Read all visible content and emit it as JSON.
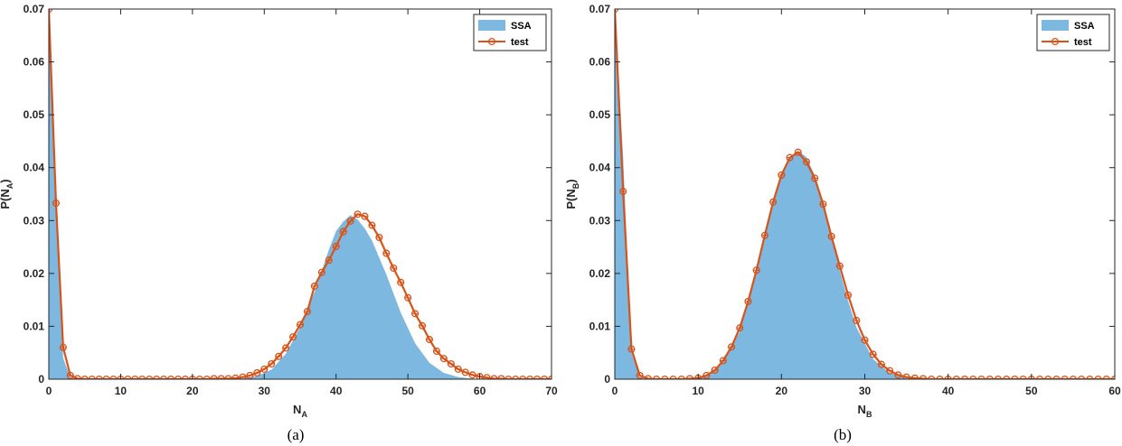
{
  "colors": {
    "hist_fill": "#7DB8E0",
    "line": "#D95319",
    "axis": "#262626"
  },
  "chart_data": [
    {
      "type": "area",
      "panel_label": "(a)",
      "xlabel_main": "N",
      "xlabel_sub": "A",
      "ylabel_main": "P(N",
      "ylabel_sub": "A",
      "ylabel_close": ")",
      "xlim": [
        0,
        70
      ],
      "ylim": [
        0,
        0.07
      ],
      "xticks": [
        "0",
        "10",
        "20",
        "30",
        "40",
        "50",
        "60",
        "70"
      ],
      "yticks": [
        "0",
        "0.01",
        "0.02",
        "0.03",
        "0.04",
        "0.05",
        "0.06",
        "0.07"
      ],
      "legend_position": "top-right",
      "series": [
        {
          "name": "SSA",
          "style": "filled",
          "x": [
            0,
            1,
            2,
            3,
            4,
            5,
            25,
            27,
            29,
            31,
            33,
            35,
            37,
            39,
            40,
            41,
            42,
            43,
            44,
            45,
            47,
            49,
            51,
            53,
            55,
            57,
            59,
            61,
            70
          ],
          "y": [
            0.07,
            0.031,
            0.004,
            0.0003,
            0.0,
            0.0,
            0.0,
            0.0002,
            0.0006,
            0.0018,
            0.0048,
            0.0098,
            0.0165,
            0.0245,
            0.028,
            0.0298,
            0.031,
            0.0302,
            0.0285,
            0.0262,
            0.0198,
            0.0126,
            0.0068,
            0.0031,
            0.0012,
            0.0004,
            0.0001,
            0.0,
            0.0
          ]
        },
        {
          "name": "test",
          "style": "line-markers",
          "x": [
            0,
            1,
            2,
            3,
            4,
            5,
            6,
            7,
            8,
            9,
            10,
            11,
            12,
            13,
            14,
            15,
            16,
            17,
            18,
            19,
            20,
            21,
            22,
            23,
            24,
            25,
            26,
            27,
            28,
            29,
            30,
            31,
            32,
            33,
            34,
            35,
            36,
            37,
            38,
            39,
            40,
            41,
            42,
            43,
            44,
            45,
            46,
            47,
            48,
            49,
            50,
            51,
            52,
            53,
            54,
            55,
            56,
            57,
            58,
            59,
            60,
            61,
            62,
            63,
            64,
            65,
            66,
            67,
            68,
            69,
            70
          ],
          "y": [
            0.07,
            0.0333,
            0.006,
            0.0007,
            0.0001,
            0,
            0,
            0,
            0,
            0,
            0,
            0,
            0,
            0,
            0,
            0,
            0,
            0,
            0,
            0,
            0,
            0,
            0,
            0.0001,
            0.0001,
            0.0001,
            0.0002,
            0.0004,
            0.0007,
            0.0012,
            0.0019,
            0.0029,
            0.0043,
            0.0059,
            0.008,
            0.0103,
            0.0128,
            0.0176,
            0.0202,
            0.0225,
            0.0251,
            0.0279,
            0.0299,
            0.0312,
            0.0308,
            0.0291,
            0.0268,
            0.0238,
            0.021,
            0.0183,
            0.0154,
            0.0124,
            0.0101,
            0.0075,
            0.0053,
            0.0039,
            0.0029,
            0.0019,
            0.0013,
            0.0008,
            0.0005,
            0.0003,
            0.0001,
            0.0001,
            0,
            0,
            0,
            0,
            0,
            0,
            0
          ]
        }
      ]
    },
    {
      "type": "area",
      "panel_label": "(b)",
      "xlabel_main": "N",
      "xlabel_sub": "B",
      "ylabel_main": "P(N",
      "ylabel_sub": "B",
      "ylabel_close": ")",
      "xlim": [
        0,
        60
      ],
      "ylim": [
        0,
        0.07
      ],
      "xticks": [
        "0",
        "10",
        "20",
        "30",
        "40",
        "50",
        "60"
      ],
      "yticks": [
        "0",
        "0.01",
        "0.02",
        "0.03",
        "0.04",
        "0.05",
        "0.06",
        "0.07"
      ],
      "legend_position": "top-right",
      "series": [
        {
          "name": "SSA",
          "style": "filled",
          "x": [
            0,
            1,
            2,
            3,
            4,
            9,
            11,
            13,
            15,
            16,
            17,
            18,
            19,
            20,
            21,
            22,
            23,
            24,
            25,
            26,
            27,
            28,
            29,
            31,
            33,
            35,
            37,
            40,
            60
          ],
          "y": [
            0.07,
            0.042,
            0.005,
            0.0004,
            0.0,
            0.0,
            0.0006,
            0.0033,
            0.009,
            0.015,
            0.0205,
            0.0273,
            0.0335,
            0.0385,
            0.042,
            0.0432,
            0.042,
            0.0385,
            0.0335,
            0.0272,
            0.0205,
            0.0148,
            0.0098,
            0.0038,
            0.0012,
            0.0003,
            0.0001,
            0.0,
            0.0
          ]
        },
        {
          "name": "test",
          "style": "line-markers",
          "x": [
            0,
            1,
            2,
            3,
            4,
            5,
            6,
            7,
            8,
            9,
            10,
            11,
            12,
            13,
            14,
            15,
            16,
            17,
            18,
            19,
            20,
            21,
            22,
            23,
            24,
            25,
            26,
            27,
            28,
            29,
            30,
            31,
            32,
            33,
            34,
            35,
            36,
            37,
            38,
            39,
            40,
            41,
            42,
            43,
            44,
            45,
            46,
            47,
            48,
            49,
            50,
            51,
            52,
            53,
            54,
            55,
            56,
            57,
            58,
            59,
            60
          ],
          "y": [
            0.07,
            0.0355,
            0.0057,
            0.0007,
            0.0001,
            0,
            0,
            0,
            0,
            0.0001,
            0.0002,
            0.0007,
            0.0017,
            0.0035,
            0.0061,
            0.0097,
            0.0147,
            0.0206,
            0.0272,
            0.0335,
            0.0386,
            0.0419,
            0.0429,
            0.0411,
            0.038,
            0.0331,
            0.027,
            0.0214,
            0.0159,
            0.0111,
            0.0074,
            0.0047,
            0.0028,
            0.0016,
            0.0008,
            0.0004,
            0.0002,
            0.0001,
            0,
            0,
            0,
            0,
            0,
            0,
            0,
            0,
            0,
            0,
            0,
            0,
            0,
            0,
            0,
            0,
            0,
            0,
            0,
            0,
            0,
            0,
            0
          ]
        }
      ]
    }
  ]
}
